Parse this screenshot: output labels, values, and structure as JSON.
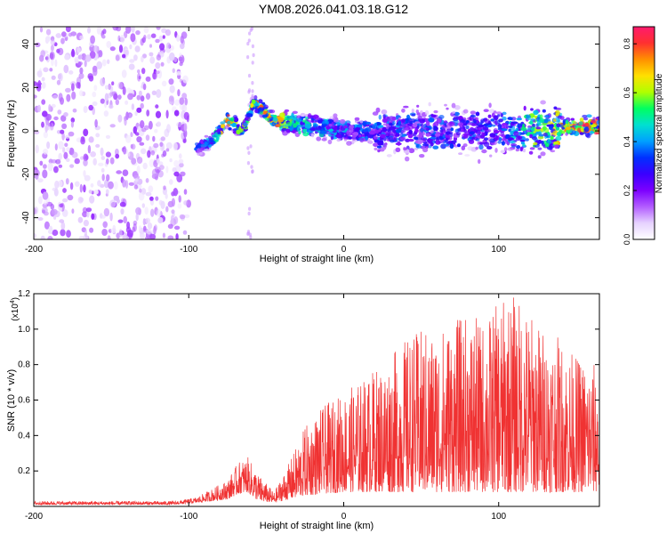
{
  "figure": {
    "title": "YM08.2026.041.03.18.G12"
  },
  "colors": {
    "snr_line": "#f03232",
    "colormap": [
      "#ffffff",
      "#e6d2ff",
      "#b25cff",
      "#7c00ff",
      "#3a00ff",
      "#0030ff",
      "#00a0ff",
      "#00e0d0",
      "#00ff60",
      "#b0ff00",
      "#ffe000",
      "#ff9000",
      "#ff3030",
      "#ff1a6e"
    ]
  },
  "chart_data": [
    {
      "type": "heatmap",
      "xlabel": "Height of straight line (km)",
      "ylabel": "Frequency (Hz)",
      "xlim": [
        -200,
        165
      ],
      "ylim": [
        -50,
        48
      ],
      "xticks": [
        "-200",
        "-100",
        "0",
        "100"
      ],
      "yticks": [
        "-40",
        "-20",
        "0",
        "20",
        "40"
      ],
      "colorbar": {
        "label": "Normalized spectral amplitude",
        "range": [
          0.0,
          0.87
        ],
        "ticks": [
          "0.0",
          "0.2",
          "0.4",
          "0.6",
          "0.8"
        ]
      },
      "features": [
        {
          "x_start": -200,
          "x_end": -100,
          "freq_min": -50,
          "freq_max": 48,
          "amplitude": 0.08,
          "note": "scattered noise"
        },
        {
          "x": -95,
          "freq": -8,
          "amplitude": 0.35
        },
        {
          "x": -85,
          "freq": -5,
          "amplitude": 0.45
        },
        {
          "x": -75,
          "freq": 5,
          "amplitude": 0.75
        },
        {
          "x": -65,
          "freq": 0,
          "amplitude": 0.55
        },
        {
          "x": -58,
          "freq": 13,
          "amplitude": 0.7
        },
        {
          "x": -45,
          "freq": 5,
          "amplitude": 0.75
        },
        {
          "x": -30,
          "freq": 3,
          "amplitude": 0.5
        },
        {
          "x": 0,
          "freq": 0,
          "amplitude": 0.4
        },
        {
          "x": 50,
          "freq": 0,
          "amplitude": 0.35
        },
        {
          "x": 100,
          "freq": 0,
          "amplitude": 0.35
        },
        {
          "x": 150,
          "freq": 2,
          "amplitude": 0.8
        },
        {
          "x": 160,
          "freq": 2,
          "amplitude": 0.85
        }
      ]
    },
    {
      "type": "line",
      "xlabel": "Height of straight line (km)",
      "ylabel": "SNR (10 * v/v)",
      "y_scale_label": "(x10",
      "y_scale_exp": "4",
      "xlim": [
        -200,
        165
      ],
      "ylim": [
        0,
        1.2
      ],
      "xticks": [
        "-200",
        "-100",
        "0",
        "100"
      ],
      "yticks": [
        "0.2",
        "0.4",
        "0.6",
        "0.8",
        "1.0",
        "1.2"
      ],
      "envelope": {
        "x": [
          -200,
          -110,
          -95,
          -85,
          -75,
          -68,
          -62,
          -55,
          -45,
          -35,
          -25,
          -15,
          0,
          10,
          20,
          30,
          40,
          50,
          60,
          70,
          80,
          90,
          100,
          110,
          120,
          130,
          140,
          150,
          165
        ],
        "max": [
          0.03,
          0.03,
          0.05,
          0.1,
          0.15,
          0.25,
          0.28,
          0.18,
          0.08,
          0.25,
          0.45,
          0.55,
          0.65,
          0.7,
          0.78,
          0.85,
          0.95,
          1.0,
          1.0,
          1.05,
          1.08,
          1.05,
          1.15,
          1.2,
          1.1,
          1.0,
          0.95,
          0.85,
          0.8
        ],
        "min": [
          0.01,
          0.01,
          0.02,
          0.03,
          0.04,
          0.07,
          0.08,
          0.03,
          0.02,
          0.04,
          0.06,
          0.07,
          0.08,
          0.08,
          0.08,
          0.08,
          0.08,
          0.08,
          0.08,
          0.08,
          0.08,
          0.08,
          0.08,
          0.08,
          0.08,
          0.08,
          0.08,
          0.08,
          0.08
        ]
      }
    }
  ]
}
